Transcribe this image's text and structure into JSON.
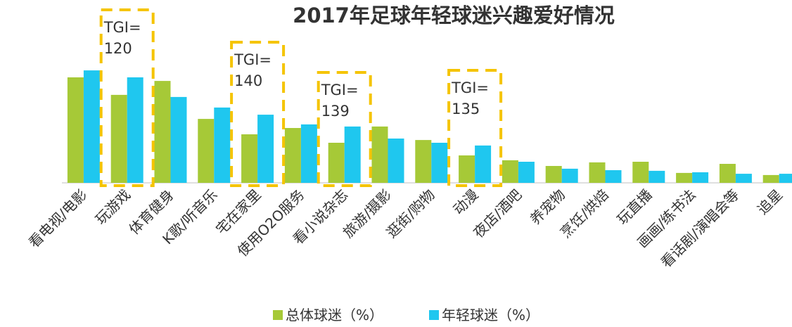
{
  "chart_data": {
    "type": "bar",
    "title": "2017年足球年轻球迷兴趣爱好情况",
    "categories": [
      "看电视/电影",
      "玩游戏",
      "体育健身",
      "K歌/听音乐",
      "宅在家里",
      "使用O2O服务",
      "看小说杂志",
      "旅游/摄影",
      "逛街/购物",
      "动漫",
      "夜店/酒吧",
      "养宠物",
      "烹饪/烘焙",
      "玩直播",
      "画画/练书法",
      "看话剧/演唱会等",
      "追星"
    ],
    "series": [
      {
        "name": "总体球迷（%）",
        "color": "#a6c937",
        "values": [
          50,
          41.7,
          48.3,
          30.3,
          23,
          26,
          19,
          26.7,
          20.3,
          13,
          10.7,
          8,
          9.7,
          10,
          4.7,
          9,
          3.7
        ]
      },
      {
        "name": "年轻球迷（%）",
        "color": "#1fc7ef",
        "values": [
          53.3,
          50,
          40.7,
          35.7,
          32.3,
          27.7,
          26.7,
          21,
          19,
          17.7,
          10,
          6.7,
          6,
          5.7,
          5,
          4.3,
          4.3
        ]
      }
    ],
    "ylim": [
      0,
      60
    ],
    "annotations": [
      {
        "label": "TGI=",
        "value": 120
      },
      {
        "label": "TGI=",
        "value": 140
      },
      {
        "label": "TGI=",
        "value": 139
      },
      {
        "label": "TGI=",
        "value": 135
      }
    ]
  }
}
